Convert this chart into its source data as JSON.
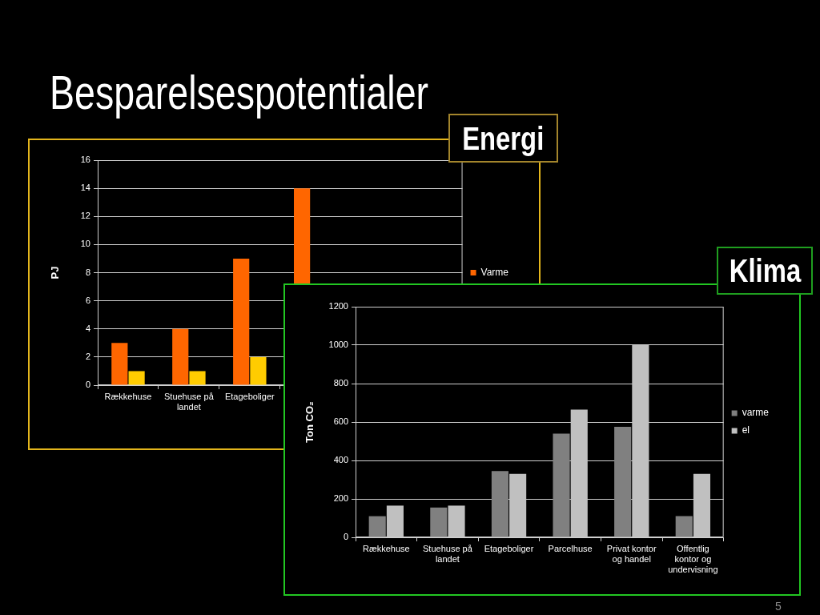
{
  "chart_data": [
    {
      "type": "bar",
      "title": "Besparelsespotentialer",
      "subtitle": "Energi",
      "ylabel": "PJ",
      "categories": [
        "Rækkehuse",
        "Stuehuse på landet",
        "Etageboliger",
        null,
        null,
        null
      ],
      "series": [
        {
          "name": "Varme",
          "color": "#ff6600",
          "values": [
            3,
            4,
            9,
            14,
            null,
            null
          ]
        },
        {
          "color": "#ffcc00",
          "values": [
            1,
            1,
            2,
            null,
            null,
            null
          ]
        }
      ],
      "ylim": [
        0,
        16
      ],
      "yticks": [
        0,
        2,
        4,
        6,
        8,
        10,
        12,
        14,
        16
      ],
      "grid": "y",
      "legend": "right"
    },
    {
      "type": "bar",
      "title": "Klima",
      "ylabel": "Ton CO₂",
      "categories": [
        "Rækkehuse",
        "Stuehuse på landet",
        "Etageboliger",
        "Parcelhuse",
        "Privat kontor og handel",
        "Offentlig kontor og undervisning"
      ],
      "series": [
        {
          "name": "varme",
          "color": "#808080",
          "values": [
            110,
            155,
            345,
            540,
            575,
            110
          ]
        },
        {
          "name": "el",
          "color": "#c0c0c0",
          "values": [
            165,
            165,
            330,
            665,
            1000,
            330
          ]
        }
      ],
      "ylim": [
        0,
        1200
      ],
      "yticks": [
        0,
        200,
        400,
        600,
        800,
        1000,
        1200
      ],
      "grid": "y",
      "legend": "right",
      "annotations": [
        "5"
      ]
    }
  ]
}
